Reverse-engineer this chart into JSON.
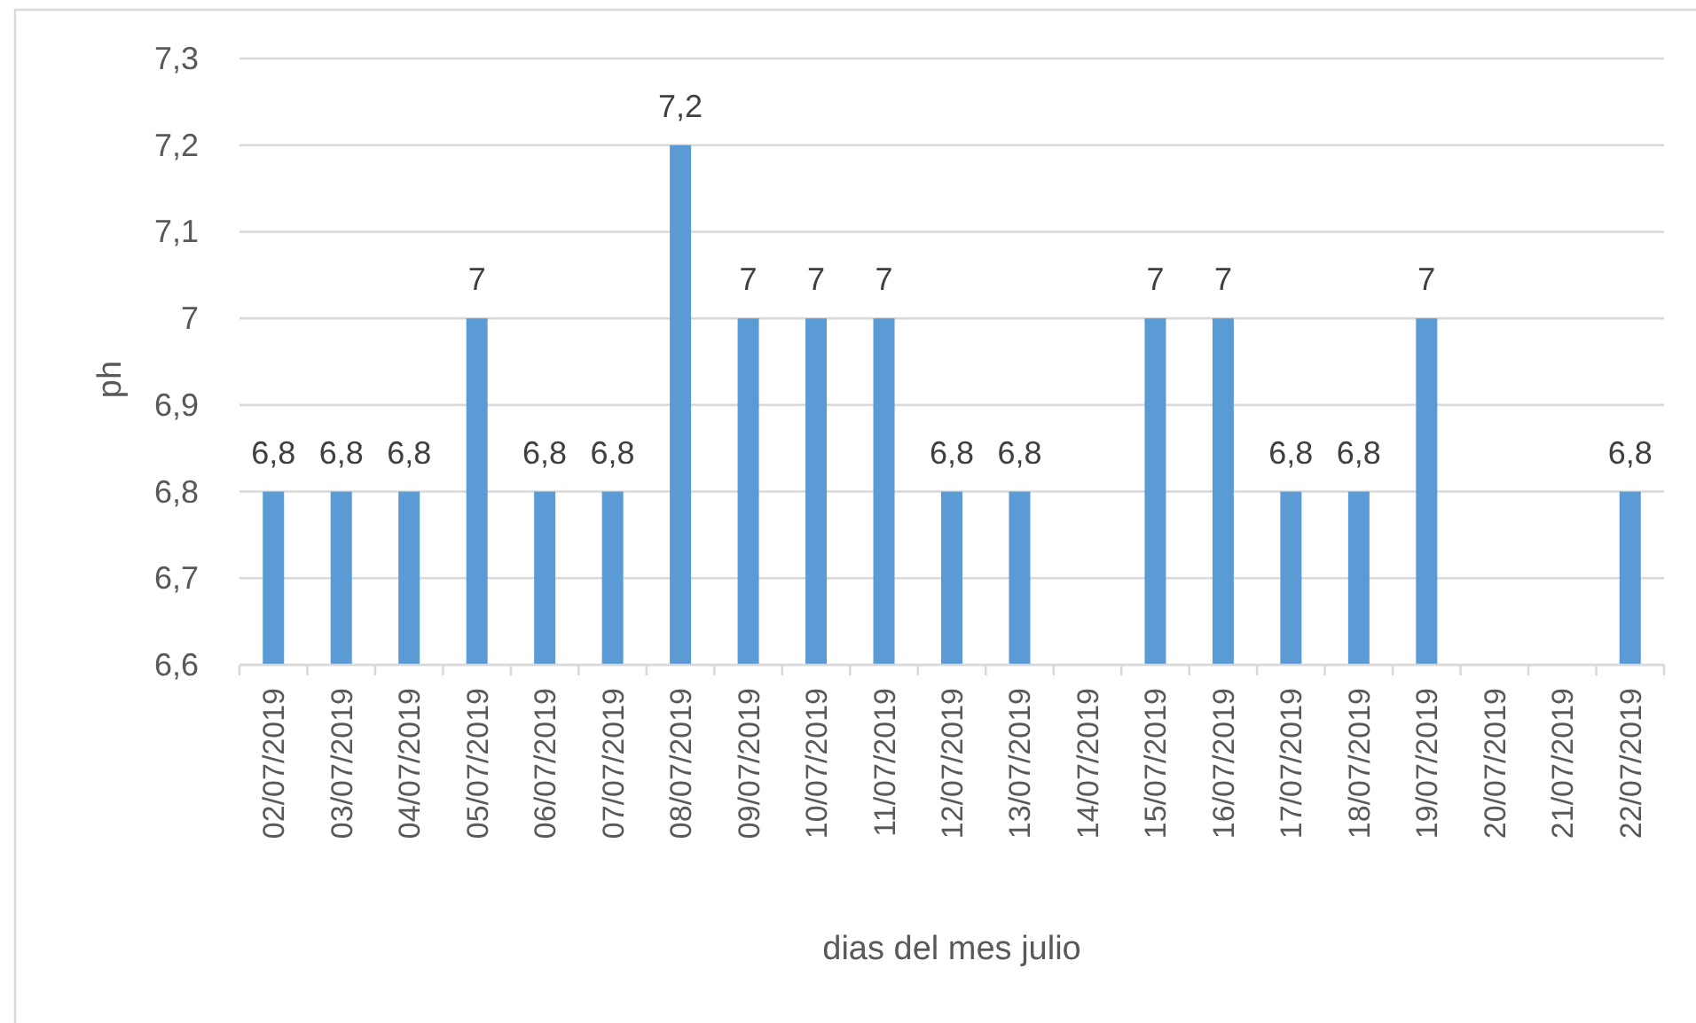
{
  "chart_data": {
    "type": "bar",
    "xlabel": "dias del mes julio",
    "ylabel": "ph",
    "categories": [
      "02/07/2019",
      "03/07/2019",
      "04/07/2019",
      "05/07/2019",
      "06/07/2019",
      "07/07/2019",
      "08/07/2019",
      "09/07/2019",
      "10/07/2019",
      "11/07/2019",
      "12/07/2019",
      "13/07/2019",
      "14/07/2019",
      "15/07/2019",
      "16/07/2019",
      "17/07/2019",
      "18/07/2019",
      "19/07/2019",
      "20/07/2019",
      "21/07/2019",
      "22/07/2019"
    ],
    "values": [
      6.8,
      6.8,
      6.8,
      7,
      6.8,
      6.8,
      7.2,
      7,
      7,
      7,
      6.8,
      6.8,
      null,
      7,
      7,
      6.8,
      6.8,
      7,
      null,
      null,
      6.8
    ],
    "value_labels": [
      "6,8",
      "6,8",
      "6,8",
      "7",
      "6,8",
      "6,8",
      "7,2",
      "7",
      "7",
      "7",
      "6,8",
      "6,8",
      null,
      "7",
      "7",
      "6,8",
      "6,8",
      "7",
      null,
      null,
      "6,8"
    ],
    "color": "#5b9bd5",
    "ylim": [
      6.6,
      7.3
    ],
    "yticks": [
      {
        "value": 6.6,
        "label": "6,6"
      },
      {
        "value": 6.7,
        "label": "6,7"
      },
      {
        "value": 6.8,
        "label": "6,8"
      },
      {
        "value": 6.9,
        "label": "6,9"
      },
      7,
      {
        "value": 7.1,
        "label": "7,1"
      },
      {
        "value": 7.2,
        "label": "7,2"
      },
      {
        "value": 7.3,
        "label": "7,3"
      }
    ],
    "grid": "y"
  }
}
